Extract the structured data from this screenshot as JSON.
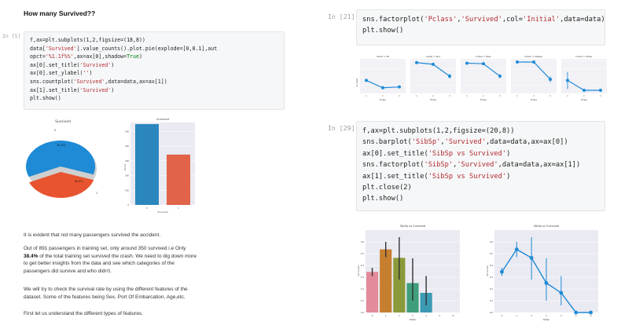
{
  "left": {
    "heading": "How many Survived??",
    "cell5": {
      "prompt": "In [5]",
      "lines": [
        [
          {
            "t": "f,ax=plt.subplots(1,2,figsize=(18,8))"
          }
        ],
        [
          {
            "t": "data["
          },
          {
            "t": "'Survived'",
            "c": "s"
          },
          {
            "t": "].value_counts().plot.pie(explode=[0,0.1],aut"
          }
        ],
        [
          {
            "t": "opct="
          },
          {
            "t": "'%1.1f%%'",
            "c": "s"
          },
          {
            "t": ",ax=ax[0],shadow="
          },
          {
            "t": "True",
            "c": "k"
          },
          {
            "t": ")"
          }
        ],
        [
          {
            "t": "ax[0].set_title("
          },
          {
            "t": "'Survived'",
            "c": "s"
          },
          {
            "t": ")"
          }
        ],
        [
          {
            "t": "ax[0].set_ylabel("
          },
          {
            "t": "''",
            "c": "s"
          },
          {
            "t": ")"
          }
        ],
        [
          {
            "t": "sns.countplot("
          },
          {
            "t": "'Survived'",
            "c": "s"
          },
          {
            "t": ",data=data,ax=ax[1])"
          }
        ],
        [
          {
            "t": "ax[1].set_title("
          },
          {
            "t": "'Survived'",
            "c": "s"
          },
          {
            "t": ")"
          }
        ],
        [
          {
            "t": "plt.show()"
          }
        ]
      ]
    },
    "pie_chart": {
      "title": "Survived",
      "label_0": "0",
      "label_1": "1",
      "pct_0": "61.6%",
      "pct_1": "38.4%",
      "colors": [
        "#1f8ad6",
        "#e8542f"
      ]
    },
    "count_chart": {
      "title": "Survived",
      "xlabel": "Survived",
      "ylabel": "count",
      "categories": [
        "0",
        "1"
      ],
      "values": [
        549,
        342
      ],
      "yticks": [
        "0",
        "100",
        "200",
        "300",
        "400",
        "500"
      ],
      "colors": [
        "#2a86bd",
        "#e0634a"
      ]
    },
    "para1": "It is evident that not many passengers survived the accident.",
    "para2_a": "Out of 891 passengers in training set, only around 350 survived i.e Only",
    "para2_b": "38.4%",
    "para2_c": " of the total training set survived the crash. We need to dig down more",
    "para2_d": "to get better insights from the data and see which categories of the",
    "para2_e": "passengers did survive and who didn't.",
    "para3_a": "We will try to check the survival rate by using the different features of the",
    "para3_b": "dataset. Some of the features being Sex, Port Of Embarcation, Age,etc.",
    "para4": "First let us understand the different types of features."
  },
  "right": {
    "cell21": {
      "prompt": "In [21]:",
      "lines": [
        [
          {
            "t": "sns.factorplot("
          },
          {
            "t": "'Pclass'",
            "c": "s"
          },
          {
            "t": ","
          },
          {
            "t": "'Survived'",
            "c": "s"
          },
          {
            "t": ",col="
          },
          {
            "t": "'Initial'",
            "c": "s"
          },
          {
            "t": ",data=data)"
          }
        ],
        [
          {
            "t": "plt.show()"
          }
        ]
      ]
    },
    "factor_panels": [
      {
        "title": "Initial = Mr",
        "values": [
          0.35,
          0.09,
          0.12
        ],
        "err": [
          0.04,
          0.03,
          0.02
        ]
      },
      {
        "title": "Initial = Mrs",
        "values": [
          0.98,
          0.92,
          0.5
        ],
        "err": [
          0.02,
          0.04,
          0.08
        ]
      },
      {
        "title": "Initial = Miss",
        "values": [
          0.96,
          0.94,
          0.5
        ],
        "err": [
          0.03,
          0.04,
          0.07
        ]
      },
      {
        "title": "Initial = Master",
        "values": [
          1.0,
          1.0,
          0.39
        ],
        "err": [
          0.0,
          0.0,
          0.1
        ]
      },
      {
        "title": "Initial = Other",
        "values": [
          0.35,
          0.0,
          0.0
        ],
        "err": [
          0.3,
          0.0,
          0.0
        ]
      }
    ],
    "factor_xlabel": "Pclass",
    "factor_ylabel": "Survived",
    "factor_categories": [
      "1",
      "2",
      "3"
    ],
    "factor_color": "#1f8ad6",
    "cell29": {
      "prompt": "In [29]:",
      "lines": [
        [
          {
            "t": "f,ax=plt.subplots(1,2,figsize=(20,8))"
          }
        ],
        [
          {
            "t": "sns.barplot("
          },
          {
            "t": "'SibSp'",
            "c": "s"
          },
          {
            "t": ","
          },
          {
            "t": "'Survived'",
            "c": "s"
          },
          {
            "t": ",data=data,ax=ax[0])"
          }
        ],
        [
          {
            "t": "ax[0].set_title("
          },
          {
            "t": "'SibSp vs Survived'",
            "c": "s"
          },
          {
            "t": ")"
          }
        ],
        [
          {
            "t": "sns.factorplot("
          },
          {
            "t": "'SibSp'",
            "c": "s"
          },
          {
            "t": ","
          },
          {
            "t": "'Survived'",
            "c": "s"
          },
          {
            "t": ",data=data,ax=ax[1])"
          }
        ],
        [
          {
            "t": "ax[1].set_title("
          },
          {
            "t": "'SibSp vs Survived'",
            "c": "s"
          },
          {
            "t": ")"
          }
        ],
        [
          {
            "t": "plt.close(2)"
          }
        ],
        [
          {
            "t": "plt.show()"
          }
        ]
      ]
    },
    "sibsp_bar": {
      "title": "SibSp vs Survived",
      "xlabel": "SibSp",
      "ylabel": "Survived",
      "categories": [
        "0",
        "1",
        "2",
        "3",
        "4",
        "5",
        "8"
      ],
      "values": [
        0.345,
        0.536,
        0.464,
        0.25,
        0.167,
        0.0,
        0.0
      ],
      "err_low": [
        0.31,
        0.47,
        0.28,
        0.1,
        0.06,
        0.0,
        0.0
      ],
      "err_high": [
        0.38,
        0.6,
        0.64,
        0.46,
        0.31,
        0.0,
        0.0
      ],
      "colors": [
        "#e38b9b",
        "#c67f2f",
        "#8a9a3a",
        "#3f9e7b",
        "#3b9bb3",
        "#8a8ccf",
        "#d782c3"
      ],
      "yticks": [
        "0.0",
        "0.1",
        "0.2",
        "0.3",
        "0.4",
        "0.5",
        "0.6"
      ]
    },
    "sibsp_point": {
      "title": "SibSp vs Survived",
      "xlabel": "SibSp",
      "ylabel": "Survived",
      "categories": [
        "0",
        "1",
        "2",
        "3",
        "4",
        "5",
        "8"
      ],
      "values": [
        0.345,
        0.536,
        0.464,
        0.25,
        0.167,
        0.0,
        0.0
      ],
      "err_low": [
        0.31,
        0.47,
        0.28,
        0.1,
        0.06,
        0.0,
        0.0
      ],
      "err_high": [
        0.38,
        0.6,
        0.64,
        0.46,
        0.31,
        0.0,
        0.0
      ],
      "color": "#1f8ad6",
      "yticks": [
        "0.0",
        "0.1",
        "0.2",
        "0.3",
        "0.4",
        "0.5",
        "0.6"
      ]
    }
  }
}
